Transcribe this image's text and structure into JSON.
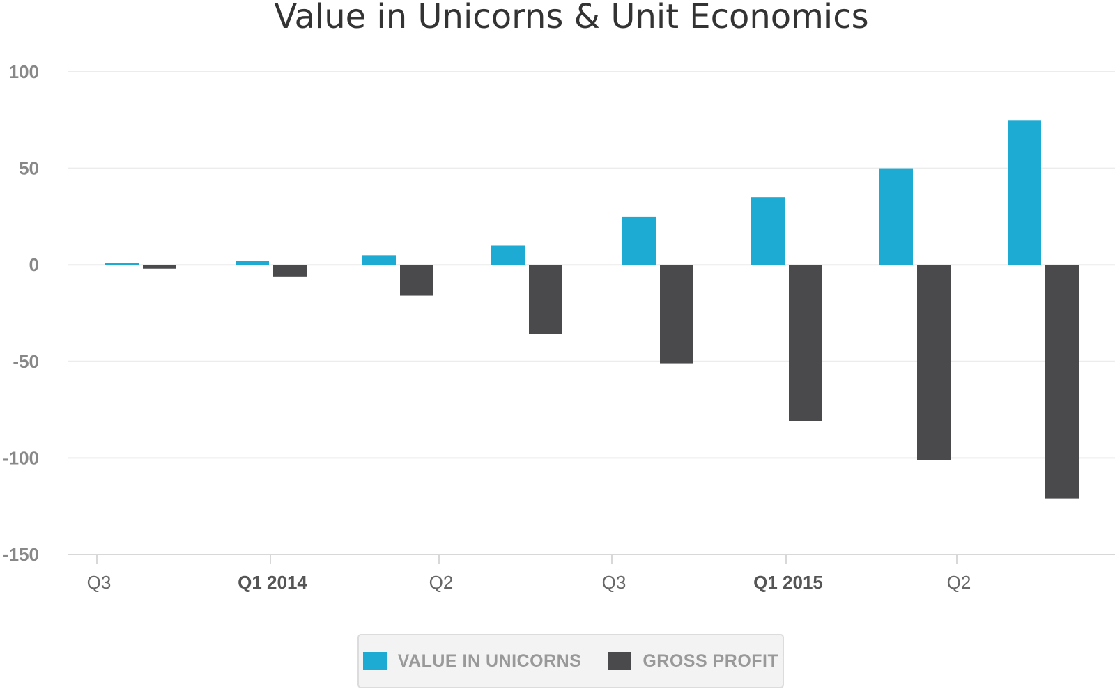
{
  "chart_data": {
    "type": "bar",
    "title": "Value in Unicorns & Unit Economics",
    "xlabel": "",
    "ylabel": "",
    "ylim": [
      -150,
      100
    ],
    "y_ticks": [
      100,
      50,
      0,
      -50,
      -100,
      -150
    ],
    "x_tick_labels": [
      {
        "label": "Q3",
        "bold": false
      },
      {
        "label": "Q1 2014",
        "bold": true
      },
      {
        "label": "Q2",
        "bold": false
      },
      {
        "label": "Q3",
        "bold": false
      },
      {
        "label": "Q1 2015",
        "bold": true
      },
      {
        "label": "Q2",
        "bold": false
      }
    ],
    "grid": true,
    "legend_position": "bottom-center",
    "series": [
      {
        "name": "VALUE IN UNICORNS",
        "color": "#1eabd3",
        "values": [
          1,
          2,
          5,
          10,
          25,
          35,
          50,
          75
        ]
      },
      {
        "name": "GROSS PROFIT",
        "color": "#4a4a4c",
        "values": [
          -2,
          -6,
          -16,
          -36,
          -51,
          -81,
          -101,
          -121
        ]
      }
    ]
  }
}
